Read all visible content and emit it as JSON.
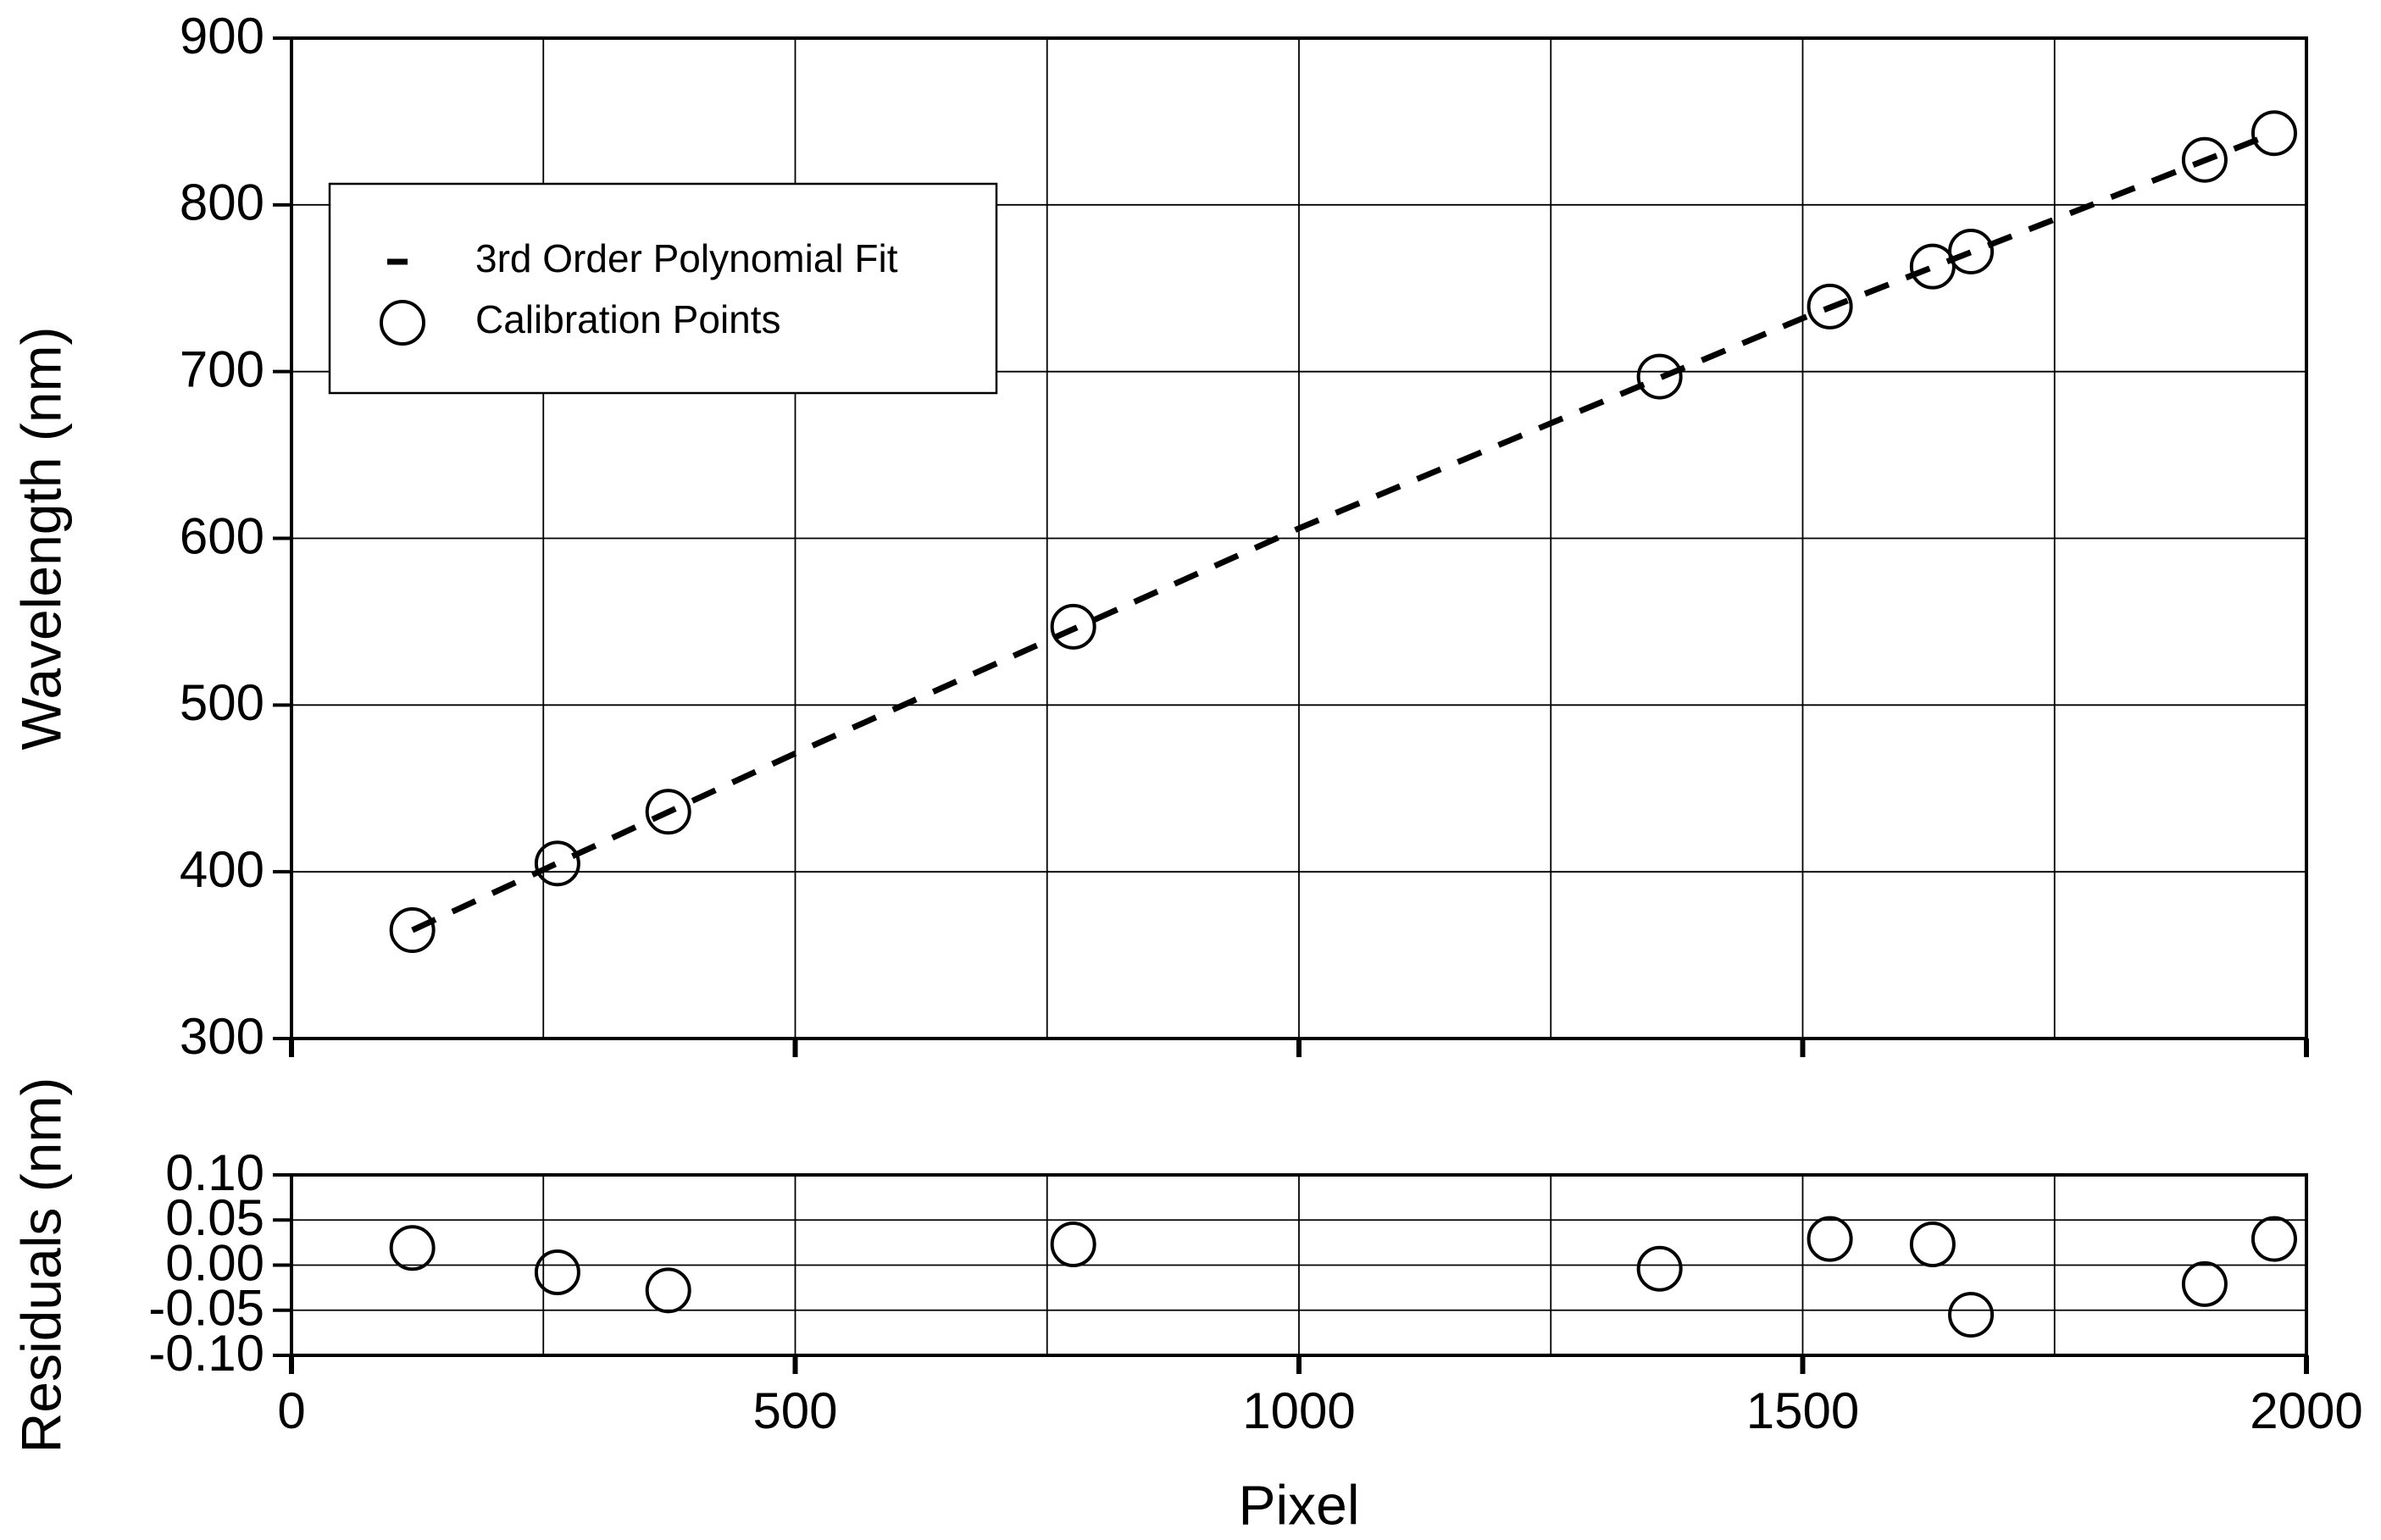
{
  "chart_data": [
    {
      "type": "scatter",
      "ylabel": "Wavelength (nm)",
      "xlim": [
        0,
        2000
      ],
      "xticks": [
        0,
        500,
        1000,
        1500,
        2000
      ],
      "xgrid": [
        250,
        500,
        750,
        1000,
        1250,
        1500,
        1750
      ],
      "ylim": [
        300,
        900
      ],
      "yticks": [
        300,
        400,
        500,
        600,
        700,
        800,
        900
      ],
      "grid": true,
      "legend": "upper left",
      "series": [
        {
          "name": "3rd Order Polynomial Fit",
          "mode": "line",
          "color": "#000000",
          "x": [
            120,
            500,
            1000,
            1500,
            1968
          ],
          "values": [
            365,
            471,
            606,
            732,
            843
          ]
        },
        {
          "name": "Calibration Points",
          "mode": "markers",
          "color": "#000000",
          "x": [
            120,
            264,
            374,
            776,
            1358,
            1527,
            1629,
            1667,
            1899,
            1968
          ],
          "values": [
            365,
            405,
            436,
            547,
            697,
            739,
            763,
            772,
            827,
            843
          ]
        }
      ]
    },
    {
      "type": "scatter",
      "ylabel": "Residuals (nm)",
      "xlabel": "Pixel",
      "xlim": [
        0,
        2000
      ],
      "xticks": [
        0,
        500,
        1000,
        1500,
        2000
      ],
      "xgrid": [
        250,
        500,
        750,
        1000,
        1250,
        1500,
        1750
      ],
      "ylim": [
        -0.1,
        0.1
      ],
      "yticks": [
        {
          "value": -0.1,
          "label": "-0.10"
        },
        {
          "value": -0.05,
          "label": "-0.05"
        },
        {
          "value": 0,
          "label": "0.00"
        },
        {
          "value": 0.05,
          "label": "0.05"
        },
        {
          "value": 0.1,
          "label": "0.10"
        }
      ],
      "grid": true,
      "color": "#000000",
      "x": [
        120,
        264,
        374,
        776,
        1358,
        1527,
        1629,
        1667,
        1899,
        1968
      ],
      "values": [
        0.019,
        -0.008,
        -0.028,
        0.023,
        -0.004,
        0.029,
        0.023,
        -0.055,
        -0.021,
        0.029
      ]
    }
  ]
}
